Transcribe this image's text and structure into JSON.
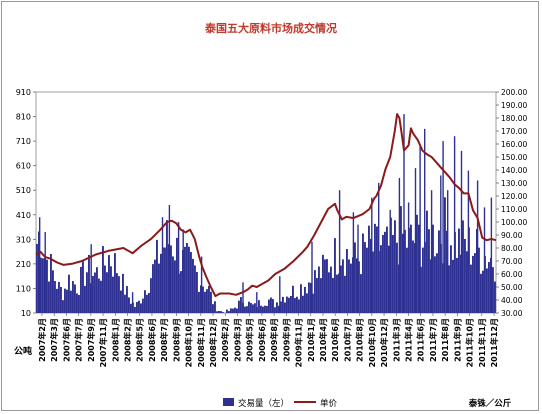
{
  "chart_data": {
    "type": "bar+line",
    "title": "泰国五大原料市场成交情况",
    "left_axis": {
      "unit": "公吨",
      "ticks": [
        10,
        110,
        210,
        310,
        410,
        510,
        610,
        710,
        810,
        910
      ],
      "range": [
        10,
        910
      ]
    },
    "right_axis": {
      "unit": "泰铢／公斤",
      "ticks": [
        "30.00",
        "40.00",
        "50.00",
        "60.00",
        "70.00",
        "80.00",
        "90.00",
        "100.00",
        "110.00",
        "120.00",
        "130.00",
        "140.00",
        "150.00",
        "160.00",
        "170.00",
        "180.00",
        "190.00",
        "200.00"
      ],
      "range": [
        30,
        200
      ]
    },
    "x_labels": [
      "2007年2月",
      "2007年3月",
      "2007年6月",
      "2007年7月",
      "2007年9月",
      "2007年11月",
      "2008年1月",
      "2008年2月",
      "2008年5月",
      "2008年6月",
      "2008年7月",
      "2008年9月",
      "2008年10月",
      "2008年11月",
      "2008年12月",
      "2009年2月",
      "2009年3月",
      "2009年5月",
      "2009年6月",
      "2009年8月",
      "2009年9月",
      "2009年11月",
      "2010年1月",
      "2010年4月",
      "2010年6月",
      "2010年7月",
      "2010年8月",
      "2010年10月",
      "2010年12月",
      "2011年3月",
      "2011年4月",
      "2011年6月",
      "2011年7月",
      "2011年8月",
      "2011年9月",
      "2011年10月",
      "2011年11月",
      "2011年12月"
    ],
    "series": [
      {
        "name": "交易量（左）",
        "type": "bar",
        "axis": "left",
        "color": "#2e3192",
        "envelope": [
          [
            0,
            300
          ],
          [
            0.01,
            380
          ],
          [
            0.02,
            260
          ],
          [
            0.03,
            220
          ],
          [
            0.05,
            120
          ],
          [
            0.06,
            100
          ],
          [
            0.07,
            160
          ],
          [
            0.09,
            130
          ],
          [
            0.11,
            200
          ],
          [
            0.13,
            180
          ],
          [
            0.15,
            230
          ],
          [
            0.16,
            260
          ],
          [
            0.18,
            200
          ],
          [
            0.19,
            130
          ],
          [
            0.205,
            70
          ],
          [
            0.215,
            40
          ],
          [
            0.225,
            60
          ],
          [
            0.24,
            130
          ],
          [
            0.255,
            200
          ],
          [
            0.27,
            280
          ],
          [
            0.285,
            330
          ],
          [
            0.3,
            320
          ],
          [
            0.315,
            240
          ],
          [
            0.33,
            230
          ],
          [
            0.345,
            200
          ],
          [
            0.36,
            150
          ],
          [
            0.375,
            120
          ],
          [
            0.385,
            60
          ],
          [
            0.395,
            25
          ],
          [
            0.405,
            15
          ],
          [
            0.42,
            20
          ],
          [
            0.43,
            30
          ],
          [
            0.45,
            70
          ],
          [
            0.46,
            55
          ],
          [
            0.475,
            40
          ],
          [
            0.49,
            60
          ],
          [
            0.505,
            70
          ],
          [
            0.52,
            50
          ],
          [
            0.535,
            80
          ],
          [
            0.55,
            100
          ],
          [
            0.565,
            110
          ],
          [
            0.58,
            130
          ],
          [
            0.595,
            150
          ],
          [
            0.61,
            170
          ],
          [
            0.625,
            200
          ],
          [
            0.635,
            230
          ],
          [
            0.65,
            260
          ],
          [
            0.665,
            300
          ],
          [
            0.68,
            260
          ],
          [
            0.695,
            240
          ],
          [
            0.71,
            270
          ],
          [
            0.72,
            300
          ],
          [
            0.735,
            290
          ],
          [
            0.75,
            310
          ],
          [
            0.765,
            290
          ],
          [
            0.78,
            330
          ],
          [
            0.795,
            350
          ],
          [
            0.81,
            320
          ],
          [
            0.83,
            340
          ],
          [
            0.85,
            330
          ],
          [
            0.87,
            360
          ],
          [
            0.89,
            380
          ],
          [
            0.905,
            330
          ],
          [
            0.92,
            320
          ],
          [
            0.935,
            310
          ],
          [
            0.95,
            300
          ],
          [
            0.965,
            280
          ],
          [
            0.98,
            260
          ],
          [
            1,
            240
          ]
        ],
        "spikes": [
          [
            0.008,
            400
          ],
          [
            0.02,
            340
          ],
          [
            0.12,
            290
          ],
          [
            0.21,
            95
          ],
          [
            0.275,
            400
          ],
          [
            0.29,
            450
          ],
          [
            0.31,
            380
          ],
          [
            0.32,
            350
          ],
          [
            0.36,
            240
          ],
          [
            0.45,
            135
          ],
          [
            0.48,
            95
          ],
          [
            0.53,
            160
          ],
          [
            0.6,
            300
          ],
          [
            0.66,
            510
          ],
          [
            0.69,
            420
          ],
          [
            0.7,
            370
          ],
          [
            0.73,
            480
          ],
          [
            0.745,
            540
          ],
          [
            0.77,
            430
          ],
          [
            0.79,
            560
          ],
          [
            0.8,
            820
          ],
          [
            0.81,
            460
          ],
          [
            0.825,
            600
          ],
          [
            0.835,
            690
          ],
          [
            0.845,
            760
          ],
          [
            0.86,
            510
          ],
          [
            0.88,
            570
          ],
          [
            0.885,
            710
          ],
          [
            0.895,
            510
          ],
          [
            0.91,
            730
          ],
          [
            0.925,
            670
          ],
          [
            0.94,
            590
          ],
          [
            0.96,
            550
          ],
          [
            0.975,
            440
          ],
          [
            0.99,
            480
          ]
        ]
      },
      {
        "name": "单价",
        "type": "line",
        "axis": "right",
        "color": "#8b1a1a",
        "points": [
          [
            0,
            75
          ],
          [
            0.01,
            77
          ],
          [
            0.02,
            73
          ],
          [
            0.03,
            72
          ],
          [
            0.045,
            69
          ],
          [
            0.06,
            67
          ],
          [
            0.08,
            68
          ],
          [
            0.1,
            70
          ],
          [
            0.13,
            75
          ],
          [
            0.16,
            78
          ],
          [
            0.19,
            80
          ],
          [
            0.21,
            76
          ],
          [
            0.23,
            82
          ],
          [
            0.25,
            87
          ],
          [
            0.27,
            94
          ],
          [
            0.285,
            100
          ],
          [
            0.295,
            101
          ],
          [
            0.305,
            99
          ],
          [
            0.315,
            94
          ],
          [
            0.325,
            92
          ],
          [
            0.335,
            94
          ],
          [
            0.345,
            87
          ],
          [
            0.355,
            73
          ],
          [
            0.362,
            65
          ],
          [
            0.37,
            58
          ],
          [
            0.38,
            50
          ],
          [
            0.39,
            43
          ],
          [
            0.4,
            45
          ],
          [
            0.41,
            45
          ],
          [
            0.42,
            45
          ],
          [
            0.435,
            44
          ],
          [
            0.45,
            46
          ],
          [
            0.46,
            48
          ],
          [
            0.47,
            51
          ],
          [
            0.48,
            50
          ],
          [
            0.49,
            52
          ],
          [
            0.505,
            55
          ],
          [
            0.52,
            60
          ],
          [
            0.54,
            64
          ],
          [
            0.56,
            70
          ],
          [
            0.58,
            77
          ],
          [
            0.59,
            81
          ],
          [
            0.605,
            90
          ],
          [
            0.62,
            100
          ],
          [
            0.635,
            110
          ],
          [
            0.65,
            114
          ],
          [
            0.655,
            109
          ],
          [
            0.665,
            102
          ],
          [
            0.675,
            104
          ],
          [
            0.69,
            103
          ],
          [
            0.71,
            106
          ],
          [
            0.725,
            110
          ],
          [
            0.735,
            118
          ],
          [
            0.74,
            120
          ],
          [
            0.75,
            128
          ],
          [
            0.76,
            141
          ],
          [
            0.77,
            150
          ],
          [
            0.78,
            170
          ],
          [
            0.785,
            183
          ],
          [
            0.79,
            180
          ],
          [
            0.795,
            168
          ],
          [
            0.8,
            155
          ],
          [
            0.81,
            159
          ],
          [
            0.815,
            172
          ],
          [
            0.82,
            168
          ],
          [
            0.83,
            163
          ],
          [
            0.84,
            155
          ],
          [
            0.85,
            152
          ],
          [
            0.86,
            150
          ],
          [
            0.87,
            146
          ],
          [
            0.88,
            142
          ],
          [
            0.89,
            138
          ],
          [
            0.9,
            134
          ],
          [
            0.91,
            129
          ],
          [
            0.92,
            126
          ],
          [
            0.93,
            122
          ],
          [
            0.94,
            122
          ],
          [
            0.95,
            109
          ],
          [
            0.96,
            103
          ],
          [
            0.97,
            88
          ],
          [
            0.98,
            86
          ],
          [
            0.99,
            87
          ],
          [
            1,
            86
          ]
        ]
      }
    ],
    "legend": {
      "placement": "bottom",
      "bar_label": "交易量（左）",
      "line_label": "单价"
    }
  }
}
